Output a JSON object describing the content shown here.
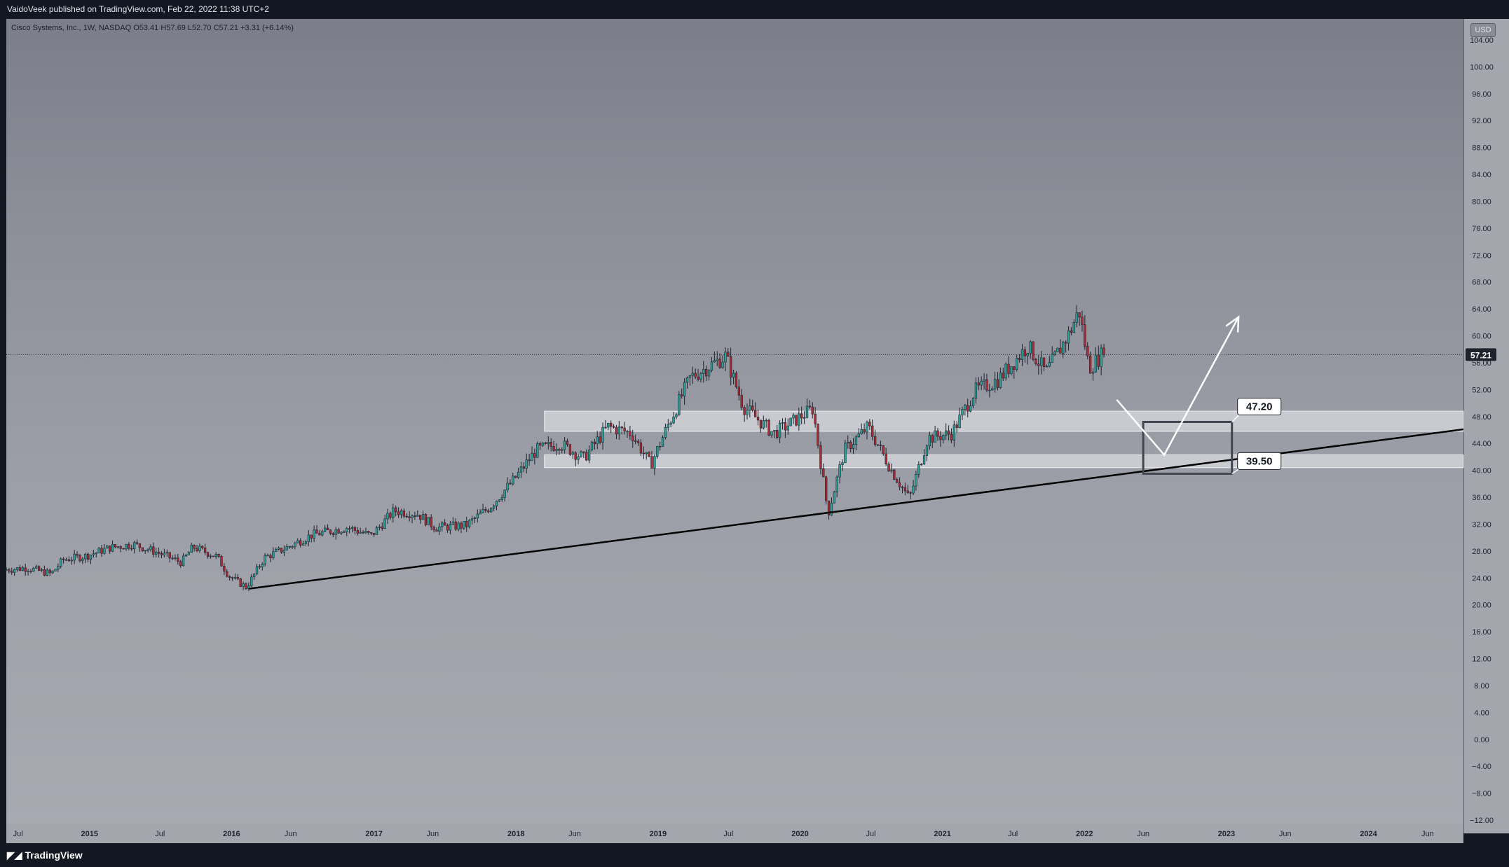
{
  "header": {
    "publish_line": "VaidoVeek published on TradingView.com, Feb 22, 2022 11:38 UTC+2"
  },
  "legend": {
    "text": "Cisco Systems, Inc., 1W, NASDAQ  O53.41  H57.69  L52.70  C57.21  +3.31 (+6.14%)"
  },
  "price_axis": {
    "currency_label": "USD",
    "current_price_label": "57.21"
  },
  "footer": {
    "brand": "TradingView"
  },
  "colors": {
    "up_candle": "#26a69a",
    "down_candle": "#b22833",
    "wick": "#1e222d",
    "zone_fill": "rgba(226,228,232,0.65)",
    "trendline": "#000000",
    "projection": "#ffffff",
    "current_price_badge": "#1e222d"
  },
  "chart_data": {
    "type": "candlestick",
    "symbol": "CSCO",
    "timeframe": "1W",
    "x_range": [
      "2014-06",
      "2024-09"
    ],
    "y_range": [
      -12,
      104
    ],
    "y_ticks": [
      "104.00",
      "100.00",
      "96.00",
      "92.00",
      "88.00",
      "84.00",
      "80.00",
      "76.00",
      "72.00",
      "68.00",
      "64.00",
      "60.00",
      "56.00",
      "52.00",
      "48.00",
      "44.00",
      "40.00",
      "36.00",
      "32.00",
      "28.00",
      "24.00",
      "20.00",
      "16.00",
      "12.00",
      "8.00",
      "4.00",
      "0.00",
      "−4.00",
      "−8.00",
      "−12.00"
    ],
    "x_ticks": [
      {
        "label": "Jul",
        "date": "2014-07",
        "bold": false
      },
      {
        "label": "2015",
        "date": "2015-01",
        "bold": true
      },
      {
        "label": "Jul",
        "date": "2015-07",
        "bold": false
      },
      {
        "label": "2016",
        "date": "2016-01",
        "bold": true
      },
      {
        "label": "Jun",
        "date": "2016-06",
        "bold": false
      },
      {
        "label": "2017",
        "date": "2017-01",
        "bold": true
      },
      {
        "label": "Jun",
        "date": "2017-06",
        "bold": false
      },
      {
        "label": "2018",
        "date": "2018-01",
        "bold": true
      },
      {
        "label": "Jun",
        "date": "2018-06",
        "bold": false
      },
      {
        "label": "2019",
        "date": "2019-01",
        "bold": true
      },
      {
        "label": "Jul",
        "date": "2019-07",
        "bold": false
      },
      {
        "label": "2020",
        "date": "2020-01",
        "bold": true
      },
      {
        "label": "Jul",
        "date": "2020-07",
        "bold": false
      },
      {
        "label": "2021",
        "date": "2021-01",
        "bold": true
      },
      {
        "label": "Jul",
        "date": "2021-07",
        "bold": false
      },
      {
        "label": "2022",
        "date": "2022-01",
        "bold": true
      },
      {
        "label": "Jun",
        "date": "2022-06",
        "bold": false
      },
      {
        "label": "2023",
        "date": "2023-01",
        "bold": true
      },
      {
        "label": "Jun",
        "date": "2023-06",
        "bold": false
      },
      {
        "label": "2024",
        "date": "2024-01",
        "bold": true
      },
      {
        "label": "Jun",
        "date": "2024-06",
        "bold": false
      }
    ],
    "price_path": [
      [
        "2014-06-01",
        25.2
      ],
      [
        "2014-08-01",
        25.5
      ],
      [
        "2014-10-01",
        24.6
      ],
      [
        "2014-11-01",
        26.7
      ],
      [
        "2015-01-01",
        27.3
      ],
      [
        "2015-03-01",
        28.5
      ],
      [
        "2015-05-01",
        29.0
      ],
      [
        "2015-07-01",
        27.8
      ],
      [
        "2015-09-01",
        26.3
      ],
      [
        "2015-10-01",
        28.6
      ],
      [
        "2015-12-01",
        27.2
      ],
      [
        "2016-01-01",
        24.3
      ],
      [
        "2016-02-15",
        22.6
      ],
      [
        "2016-04-01",
        27.0
      ],
      [
        "2016-06-01",
        28.6
      ],
      [
        "2016-08-01",
        30.4
      ],
      [
        "2016-11-01",
        31.5
      ],
      [
        "2017-01-01",
        30.3
      ],
      [
        "2017-03-01",
        34.0
      ],
      [
        "2017-05-01",
        33.5
      ],
      [
        "2017-06-15",
        31.5
      ],
      [
        "2017-09-01",
        31.8
      ],
      [
        "2017-11-01",
        34.5
      ],
      [
        "2018-01-01",
        38.5
      ],
      [
        "2018-03-01",
        43.0
      ],
      [
        "2018-05-01",
        44.0
      ],
      [
        "2018-07-01",
        41.8
      ],
      [
        "2018-09-01",
        46.5
      ],
      [
        "2018-11-01",
        45.5
      ],
      [
        "2018-12-20",
        40.8
      ],
      [
        "2019-02-01",
        46.5
      ],
      [
        "2019-04-01",
        53.8
      ],
      [
        "2019-07-01",
        57.0
      ],
      [
        "2019-08-15",
        49.5
      ],
      [
        "2019-11-01",
        45.5
      ],
      [
        "2019-12-01",
        46.5
      ],
      [
        "2020-02-10",
        49.2
      ],
      [
        "2020-03-20",
        33.5
      ],
      [
        "2020-05-01",
        43.0
      ],
      [
        "2020-07-01",
        46.5
      ],
      [
        "2020-09-01",
        39.8
      ],
      [
        "2020-10-15",
        35.8
      ],
      [
        "2020-12-01",
        44.8
      ],
      [
        "2021-02-01",
        45.5
      ],
      [
        "2021-04-01",
        51.8
      ],
      [
        "2021-06-01",
        53.5
      ],
      [
        "2021-08-15",
        58.5
      ],
      [
        "2021-10-01",
        54.5
      ],
      [
        "2021-12-01",
        60.5
      ],
      [
        "2021-12-25",
        63.8
      ],
      [
        "2022-01-20",
        55.2
      ],
      [
        "2022-02-22",
        57.21
      ]
    ],
    "current_price": 57.21,
    "support_zones": [
      {
        "from": "2018-03-15",
        "to": "2024-09",
        "low": 45.8,
        "high": 48.8
      },
      {
        "from": "2018-03-15",
        "to": "2024-09",
        "low": 40.4,
        "high": 42.3
      }
    ],
    "trendline": {
      "start": [
        "2016-02-15",
        22.4
      ],
      "end": [
        "2024-09",
        46.1
      ]
    },
    "target_box": {
      "from": "2022-06-01",
      "to": "2023-01-15",
      "low": 39.5,
      "high": 47.2
    },
    "projection_path": [
      [
        "2022-03-25",
        50.5
      ],
      [
        "2022-07-25",
        42.3
      ],
      [
        "2023-02-01",
        62.8
      ]
    ],
    "annotations": [
      {
        "label": "47.20",
        "date": "2023-01-15",
        "price": 47.2
      },
      {
        "label": "39.50",
        "date": "2023-01-15",
        "price": 39.5
      }
    ]
  }
}
